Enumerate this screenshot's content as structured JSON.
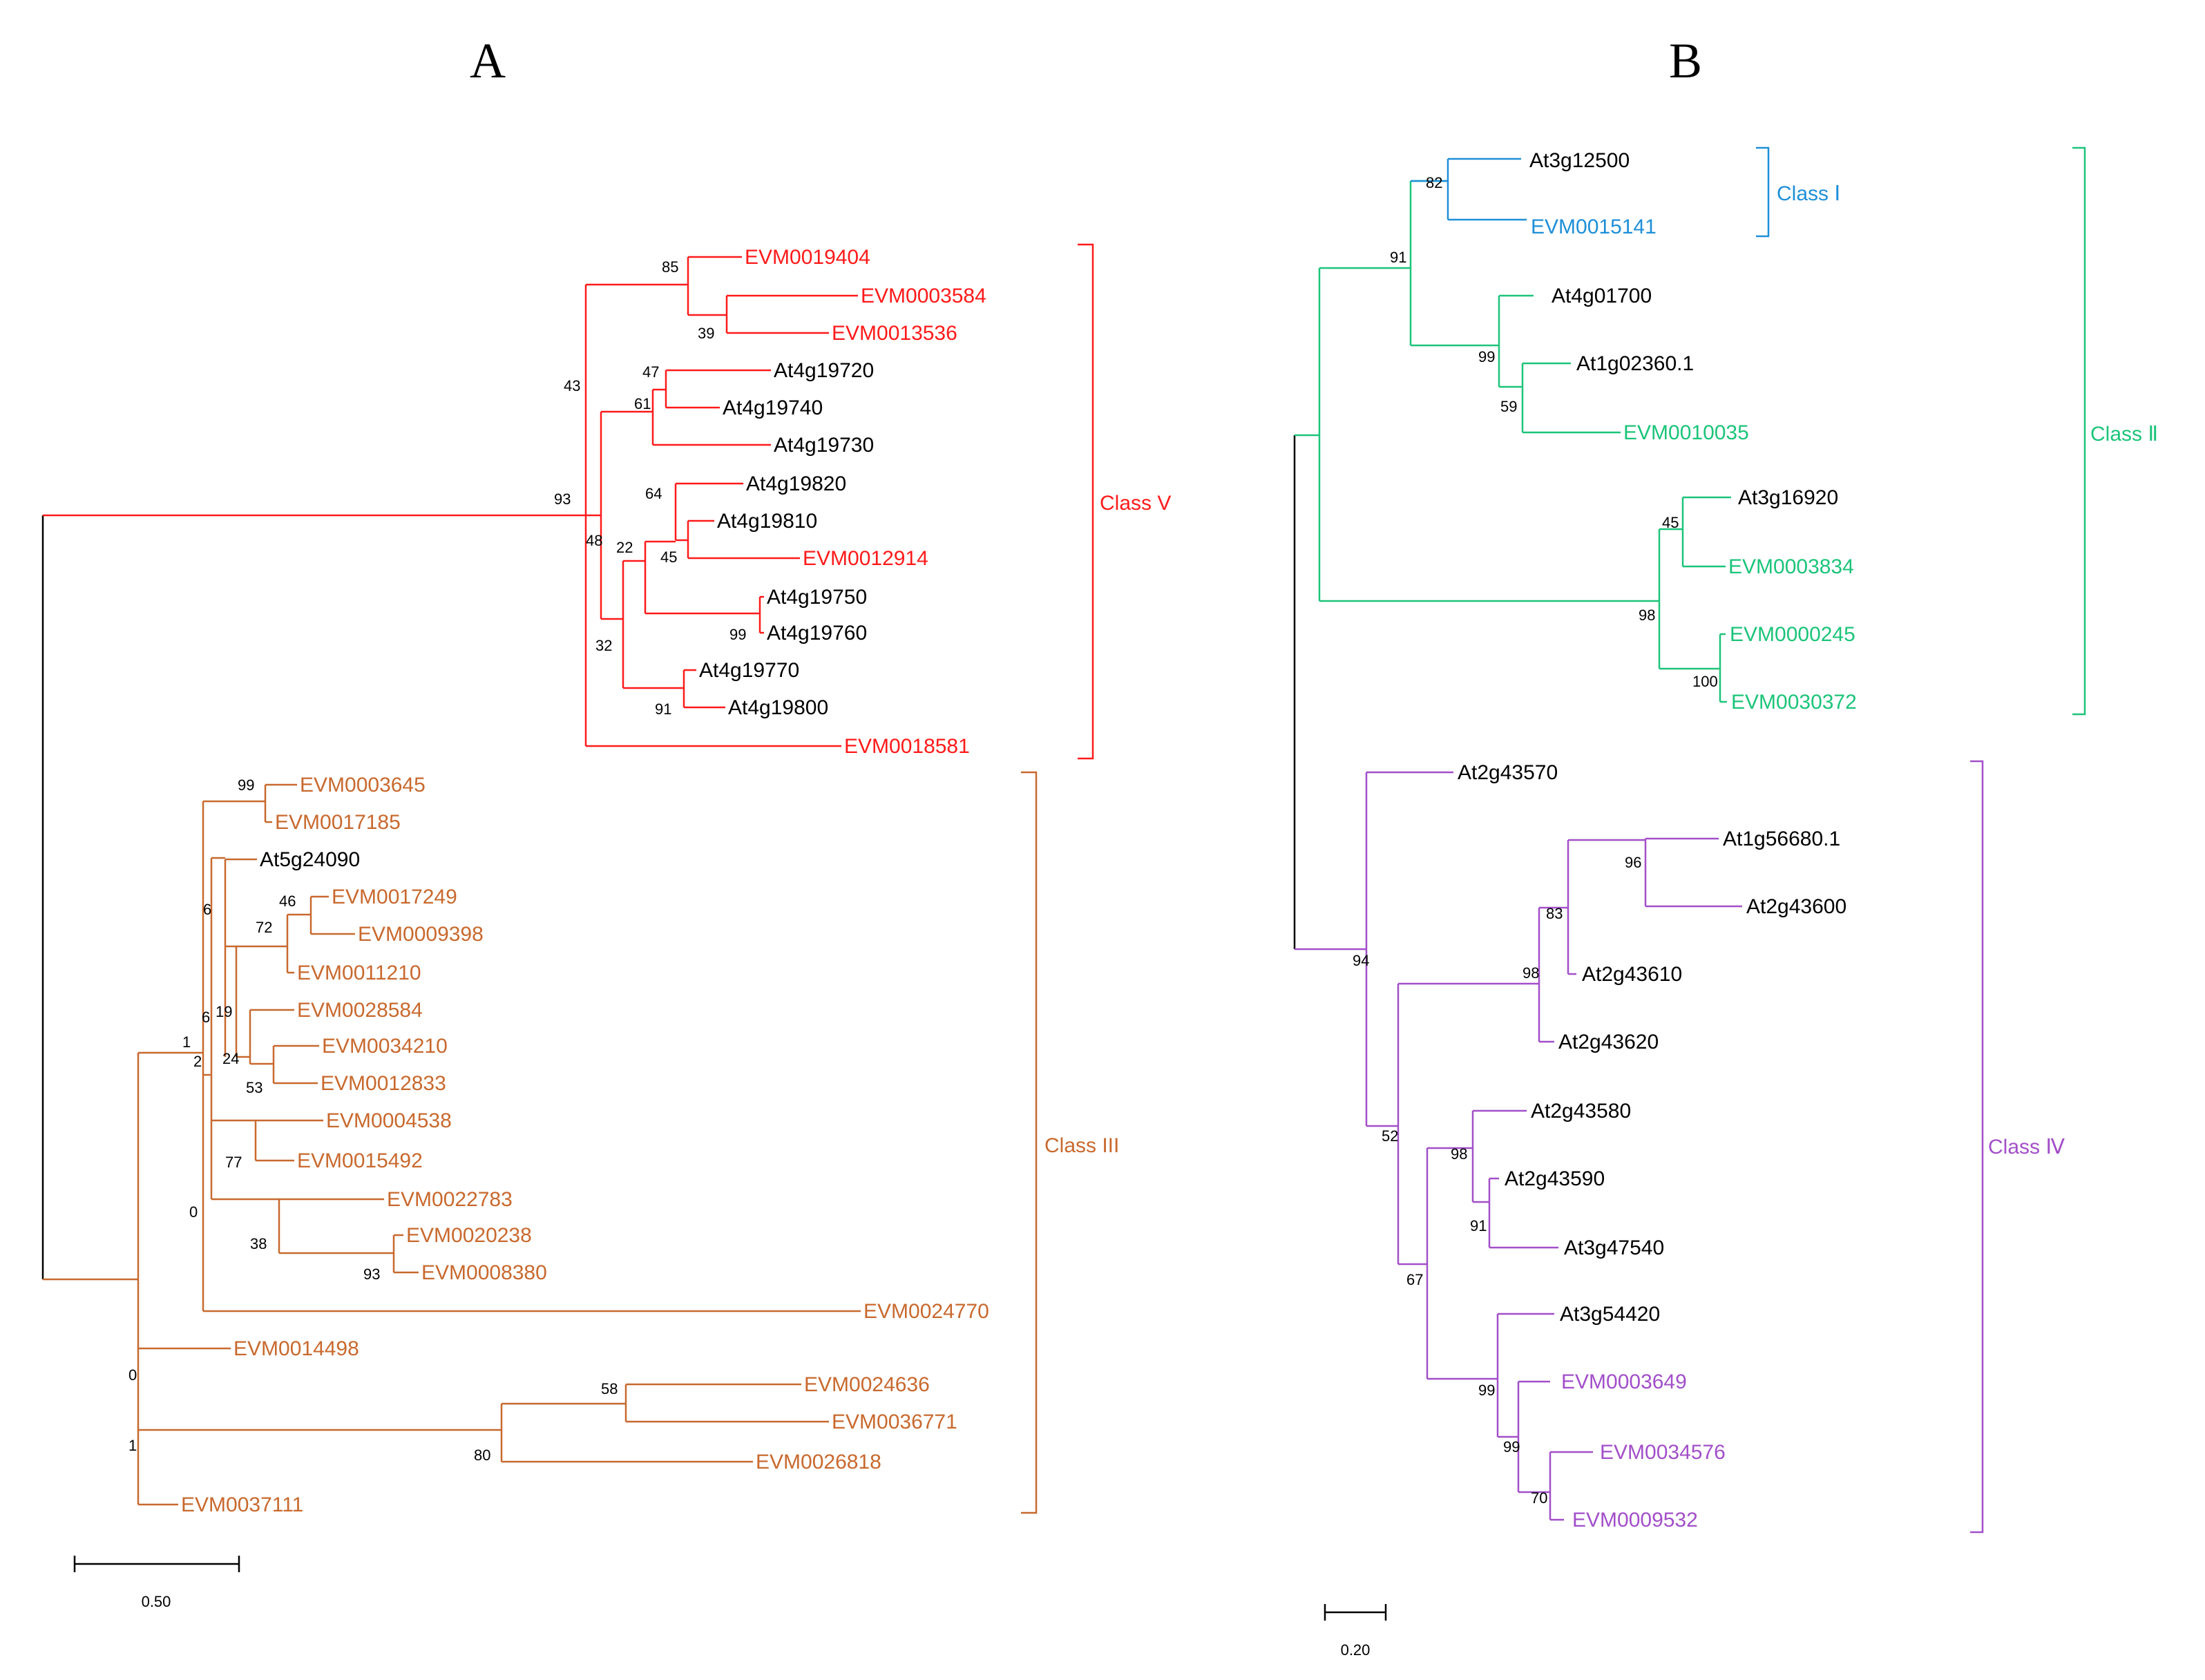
{
  "colors": {
    "black": "#000000",
    "classV": "#ff1a1a",
    "classIII": "#c8692e",
    "classI": "#1e8fd8",
    "classII": "#1cc47a",
    "classIV": "#a24fc9"
  },
  "panels": [
    {
      "id": "A",
      "letter": "A",
      "scale_bar": {
        "value": 0.5,
        "label": "0.50"
      },
      "leaves": [
        {
          "name": "EVM0019404",
          "clade": "classV"
        },
        {
          "name": "EVM0003584",
          "clade": "classV"
        },
        {
          "name": "EVM0013536",
          "clade": "classV"
        },
        {
          "name": "At4g19720",
          "clade": "black"
        },
        {
          "name": "At4g19740",
          "clade": "black"
        },
        {
          "name": "At4g19730",
          "clade": "black"
        },
        {
          "name": "At4g19820",
          "clade": "black"
        },
        {
          "name": "At4g19810",
          "clade": "black"
        },
        {
          "name": "EVM0012914",
          "clade": "classV"
        },
        {
          "name": "At4g19750",
          "clade": "black"
        },
        {
          "name": "At4g19760",
          "clade": "black"
        },
        {
          "name": "At4g19770",
          "clade": "black"
        },
        {
          "name": "At4g19800",
          "clade": "black"
        },
        {
          "name": "EVM0018581",
          "clade": "classV"
        },
        {
          "name": "EVM0003645",
          "clade": "classIII"
        },
        {
          "name": "EVM0017185",
          "clade": "classIII"
        },
        {
          "name": "At5g24090",
          "clade": "black"
        },
        {
          "name": "EVM0017249",
          "clade": "classIII"
        },
        {
          "name": "EVM0009398",
          "clade": "classIII"
        },
        {
          "name": "EVM0011210",
          "clade": "classIII"
        },
        {
          "name": "EVM0028584",
          "clade": "classIII"
        },
        {
          "name": "EVM0034210",
          "clade": "classIII"
        },
        {
          "name": "EVM0012833",
          "clade": "classIII"
        },
        {
          "name": "EVM0004538",
          "clade": "classIII"
        },
        {
          "name": "EVM0015492",
          "clade": "classIII"
        },
        {
          "name": "EVM0022783",
          "clade": "classIII"
        },
        {
          "name": "EVM0020238",
          "clade": "classIII"
        },
        {
          "name": "EVM0008380",
          "clade": "classIII"
        },
        {
          "name": "EVM0024770",
          "clade": "classIII"
        },
        {
          "name": "EVM0014498",
          "clade": "classIII"
        },
        {
          "name": "EVM0024636",
          "clade": "classIII"
        },
        {
          "name": "EVM0036771",
          "clade": "classIII"
        },
        {
          "name": "EVM0026818",
          "clade": "classIII"
        },
        {
          "name": "EVM0037111",
          "clade": "classIII"
        }
      ],
      "bootstraps": [
        "85",
        "39",
        "43",
        "47",
        "61",
        "93",
        "64",
        "48",
        "22",
        "45",
        "99",
        "32",
        "91",
        "99",
        "6",
        "46",
        "72",
        "19",
        "6",
        "1",
        "2",
        "24",
        "53",
        "77",
        "0",
        "38",
        "93",
        "58",
        "80",
        "0",
        "1"
      ],
      "clades": [
        {
          "label": "Class V",
          "color": "classV"
        },
        {
          "label": "Class III",
          "color": "classIII"
        }
      ]
    },
    {
      "id": "B",
      "letter": "B",
      "scale_bar": {
        "value": 0.2,
        "label": "0.20"
      },
      "leaves": [
        {
          "name": "At3g12500",
          "clade": "black"
        },
        {
          "name": "EVM0015141",
          "clade": "classI"
        },
        {
          "name": "At4g01700",
          "clade": "black"
        },
        {
          "name": "At1g02360.1",
          "clade": "black"
        },
        {
          "name": "EVM0010035",
          "clade": "classII"
        },
        {
          "name": "At3g16920",
          "clade": "black"
        },
        {
          "name": "EVM0003834",
          "clade": "classII"
        },
        {
          "name": "EVM0000245",
          "clade": "classII"
        },
        {
          "name": "EVM0030372",
          "clade": "classII"
        },
        {
          "name": "At2g43570",
          "clade": "black"
        },
        {
          "name": "At1g56680.1",
          "clade": "black"
        },
        {
          "name": "At2g43600",
          "clade": "black"
        },
        {
          "name": "At2g43610",
          "clade": "black"
        },
        {
          "name": "At2g43620",
          "clade": "black"
        },
        {
          "name": "At2g43580",
          "clade": "black"
        },
        {
          "name": "At2g43590",
          "clade": "black"
        },
        {
          "name": "At3g47540",
          "clade": "black"
        },
        {
          "name": "At3g54420",
          "clade": "black"
        },
        {
          "name": "EVM0003649",
          "clade": "classIV"
        },
        {
          "name": "EVM0034576",
          "clade": "classIV"
        },
        {
          "name": "EVM0009532",
          "clade": "classIV"
        }
      ],
      "bootstraps": [
        "82",
        "91",
        "99",
        "59",
        "45",
        "98",
        "100",
        "96",
        "83",
        "98",
        "94",
        "98",
        "52",
        "91",
        "67",
        "99",
        "99",
        "70"
      ],
      "clades": [
        {
          "label": "Class Ⅰ",
          "color": "classI"
        },
        {
          "label": "Class Ⅱ",
          "color": "classII"
        },
        {
          "label": "Class Ⅳ",
          "color": "classIV"
        }
      ]
    }
  ]
}
